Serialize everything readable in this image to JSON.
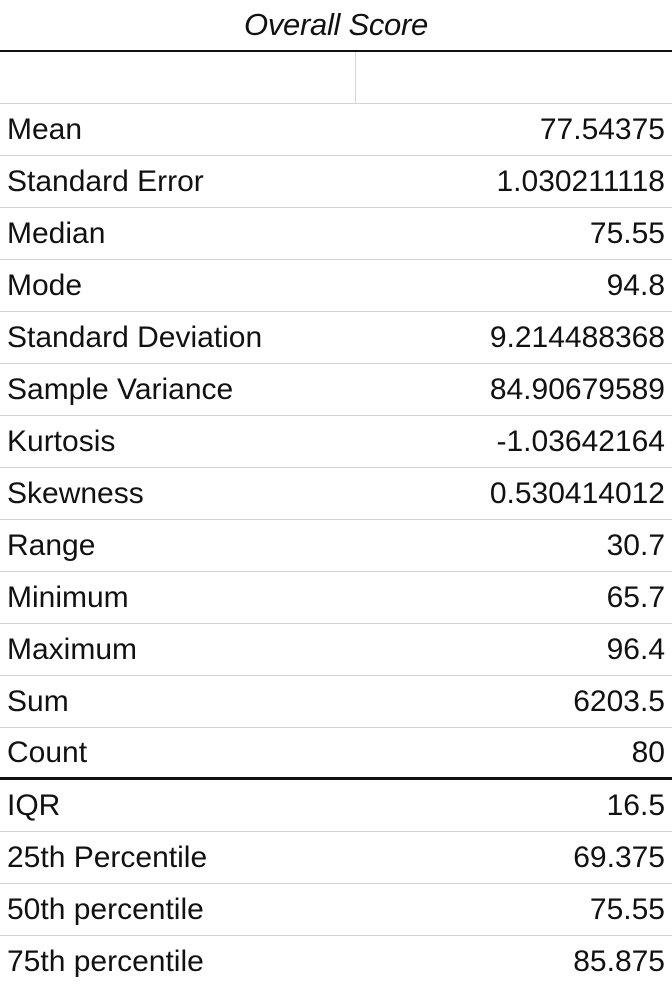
{
  "header": {
    "title": "Overall Score"
  },
  "stats": [
    {
      "label": "Mean",
      "value": "77.54375"
    },
    {
      "label": "Standard Error",
      "value": "1.030211118"
    },
    {
      "label": "Median",
      "value": "75.55"
    },
    {
      "label": "Mode",
      "value": "94.8"
    },
    {
      "label": "Standard Deviation",
      "value": "9.214488368"
    },
    {
      "label": "Sample Variance",
      "value": "84.90679589"
    },
    {
      "label": "Kurtosis",
      "value": "-1.03642164"
    },
    {
      "label": "Skewness",
      "value": "0.530414012"
    },
    {
      "label": "Range",
      "value": "30.7"
    },
    {
      "label": "Minimum",
      "value": "65.7"
    },
    {
      "label": "Maximum",
      "value": "96.4"
    },
    {
      "label": "Sum",
      "value": "6203.5"
    },
    {
      "label": "Count",
      "value": "80"
    }
  ],
  "extra": [
    {
      "label": "IQR",
      "value": "16.5"
    },
    {
      "label": "25th Percentile",
      "value": "69.375"
    },
    {
      "label": "50th percentile",
      "value": "75.55"
    },
    {
      "label": "75th percentile",
      "value": "85.875"
    }
  ]
}
